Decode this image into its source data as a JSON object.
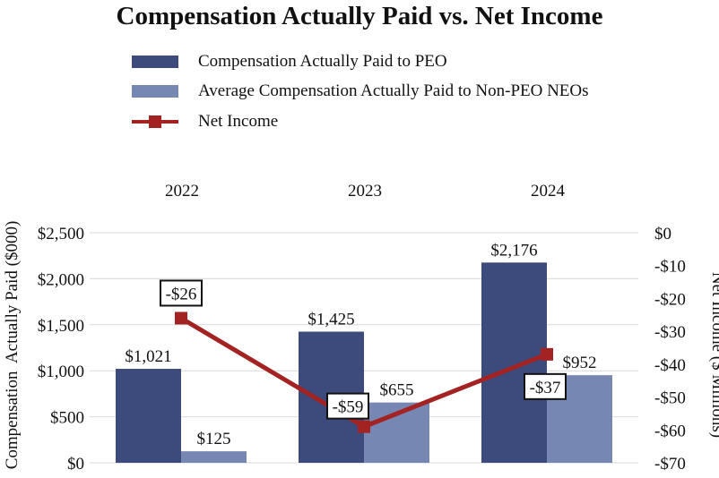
{
  "chart_data": {
    "type": "bar",
    "title": "Compensation Actually Paid vs. Net Income",
    "categories": [
      "2022",
      "2023",
      "2024"
    ],
    "series": [
      {
        "name": "Compensation Actually Paid to PEO",
        "type": "bar",
        "axis": "left",
        "values": [
          1021,
          1425,
          2176
        ],
        "labels": [
          "$1,021",
          "$1,425",
          "$2,176"
        ],
        "color": "#3d4a7c"
      },
      {
        "name": "Average Compensation Actually Paid to Non-PEO NEOs",
        "type": "bar",
        "axis": "left",
        "values": [
          125,
          655,
          952
        ],
        "labels": [
          "$125",
          "$655",
          "$952"
        ],
        "color": "#7787b3"
      },
      {
        "name": "Net Income",
        "type": "line",
        "axis": "right",
        "values": [
          -26,
          -59,
          -37
        ],
        "labels": [
          "-$26",
          "-$59",
          "-$37"
        ],
        "color": "#a32222"
      }
    ],
    "ylabel": "Compensation  Actually Paid ($000)",
    "y2label": "Net Income ($ Millions)",
    "ylim": [
      0,
      2500
    ],
    "y2lim": [
      -70,
      0
    ],
    "yticks": [
      0,
      500,
      1000,
      1500,
      2000,
      2500
    ],
    "ytick_labels": [
      "$0",
      "$500",
      "$1,000",
      "$1,500",
      "$2,000",
      "$2,500"
    ],
    "y2ticks": [
      0,
      -10,
      -20,
      -30,
      -40,
      -50,
      -60,
      -70
    ],
    "y2tick_labels": [
      "$0",
      "-$10",
      "-$20",
      "-$30",
      "-$40",
      "-$50",
      "-$60",
      "-$70"
    ],
    "grid": true,
    "legend": "top-left",
    "xaxis_position": "top"
  }
}
